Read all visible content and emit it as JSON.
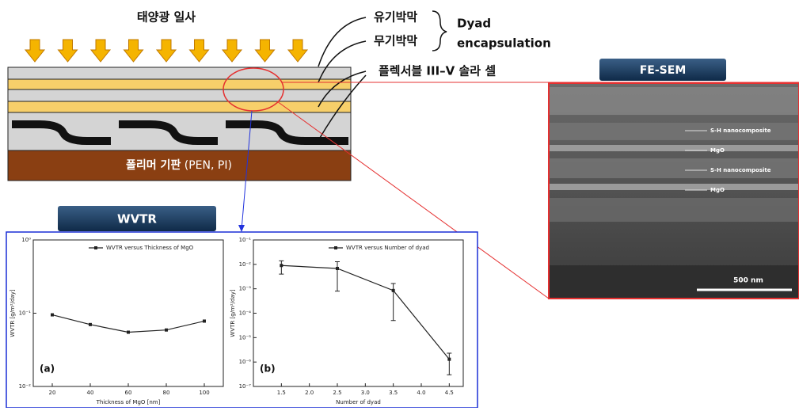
{
  "diagram": {
    "sunlight": "태양광 일사",
    "organic_film": "유기박막",
    "inorganic_film": "무기박막",
    "dyad_line1": "Dyad",
    "dyad_line2": "encapsulation",
    "solar_cell": "플렉서블 III–V 솔라 셀",
    "substrate": "폴리머 기판",
    "substrate_note": "(PEN, PI)",
    "sem_button": "FE-SEM",
    "wvtr_button": "WVTR",
    "sem_labels": [
      "S-H nanocomposite",
      "MgO",
      "S-H nanocomposite",
      "MgO"
    ],
    "scale_bar": "500 nm"
  },
  "chart_data": [
    {
      "type": "line",
      "panel_label": "(a)",
      "xlabel": "Thickness of MgO [nm]",
      "ylabel": "WVTR [g/m²/day]",
      "x": [
        20,
        40,
        60,
        80,
        100
      ],
      "series": [
        {
          "name": "WVTR versus Thickness of MgO",
          "color": "#222222",
          "values": [
            0.095,
            0.07,
            0.055,
            0.059,
            0.078
          ]
        }
      ],
      "xlim": [
        10,
        110
      ],
      "xticks": [
        20,
        40,
        60,
        80,
        100
      ],
      "ylim": [
        0.01,
        1
      ],
      "ylog": true,
      "yticks": [
        {
          "value": 1,
          "label": "10⁰"
        },
        {
          "value": 0.1,
          "label": "10⁻¹"
        },
        {
          "value": 0.01,
          "label": "10⁻²"
        }
      ]
    },
    {
      "type": "line",
      "panel_label": "(b)",
      "xlabel": "Number of dyad",
      "ylabel": "WVTR [g/m²/day]",
      "x": [
        1.5,
        2.5,
        3.5,
        4.5
      ],
      "series": [
        {
          "name": "WVTR versus Number of dyad",
          "color": "#222222",
          "values": [
            0.009,
            0.0068,
            0.00085,
            1.3e-06
          ],
          "errors": [
            0.005,
            0.006,
            0.0008,
            1e-06
          ]
        }
      ],
      "xlim": [
        1.0,
        4.75
      ],
      "xticks": [
        1.5,
        {
          "value": 2,
          "label": "2.0"
        },
        2.5,
        {
          "value": 3,
          "label": "3.0"
        },
        3.5,
        {
          "value": 4,
          "label": "4.0"
        },
        4.5
      ],
      "ylim": [
        1e-07,
        0.1
      ],
      "ylog": true,
      "yticks": [
        {
          "value": 0.1,
          "label": "10⁻¹"
        },
        {
          "value": 0.01,
          "label": "10⁻²"
        },
        {
          "value": 0.001,
          "label": "10⁻³"
        },
        {
          "value": 0.0001,
          "label": "10⁻⁴"
        },
        {
          "value": 1e-05,
          "label": "10⁻⁵"
        },
        {
          "value": 1e-06,
          "label": "10⁻⁶"
        },
        {
          "value": 1e-07,
          "label": "10⁻⁷"
        }
      ]
    }
  ]
}
